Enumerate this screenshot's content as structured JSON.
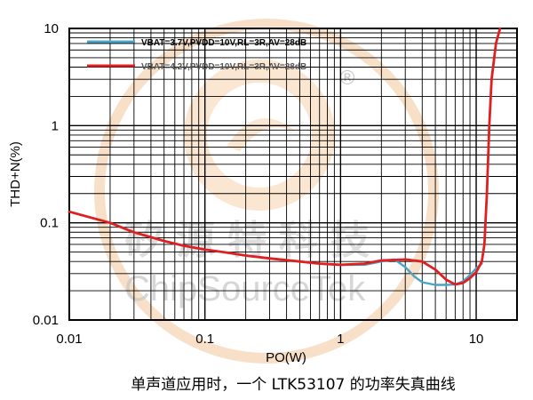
{
  "chart_data": {
    "type": "line",
    "title": "",
    "caption": "单声道应用时，一个 LTK53107 的功率失真曲线",
    "xlabel": "PO(W)",
    "ylabel": "THD+N(%)",
    "xscale": "log",
    "yscale": "log",
    "xlim": [
      0.01,
      20
    ],
    "ylim": [
      0.01,
      10
    ],
    "x_ticks": [
      "0.01",
      "0.1",
      "1",
      "10"
    ],
    "y_ticks": [
      "0.01",
      "0.1",
      "1",
      "10"
    ],
    "grid": true,
    "legend_position": "top-left",
    "series": [
      {
        "name": "VBAT=3.7V,PVDD=10V,RL=3R,AV=28dB",
        "color": "#4aa3c8",
        "points": [
          [
            0.01,
            0.13
          ],
          [
            0.02,
            0.1
          ],
          [
            0.03,
            0.08
          ],
          [
            0.05,
            0.065
          ],
          [
            0.07,
            0.058
          ],
          [
            0.1,
            0.053
          ],
          [
            0.15,
            0.049
          ],
          [
            0.2,
            0.046
          ],
          [
            0.3,
            0.043
          ],
          [
            0.5,
            0.04
          ],
          [
            0.7,
            0.038
          ],
          [
            1.0,
            0.037
          ],
          [
            1.5,
            0.037
          ],
          [
            2.0,
            0.04
          ],
          [
            2.5,
            0.042
          ],
          [
            3.0,
            0.035
          ],
          [
            3.5,
            0.028
          ],
          [
            4.0,
            0.0245
          ],
          [
            5.0,
            0.023
          ],
          [
            6.0,
            0.023
          ],
          [
            7.0,
            0.0232
          ],
          [
            8.0,
            0.025
          ],
          [
            9.0,
            0.029
          ],
          [
            10.0,
            0.034
          ],
          [
            11.0,
            0.038
          ]
        ]
      },
      {
        "name": "VBAT=4.2V,PVDD=10V,RL=3R,AV=28dB",
        "color": "#e02020",
        "points": [
          [
            0.01,
            0.13
          ],
          [
            0.02,
            0.1
          ],
          [
            0.03,
            0.08
          ],
          [
            0.05,
            0.065
          ],
          [
            0.07,
            0.058
          ],
          [
            0.1,
            0.053
          ],
          [
            0.15,
            0.049
          ],
          [
            0.2,
            0.046
          ],
          [
            0.3,
            0.043
          ],
          [
            0.5,
            0.04
          ],
          [
            0.7,
            0.038
          ],
          [
            1.0,
            0.037
          ],
          [
            1.5,
            0.038
          ],
          [
            2.0,
            0.041
          ],
          [
            3.0,
            0.042
          ],
          [
            4.0,
            0.04
          ],
          [
            5.0,
            0.033
          ],
          [
            6.0,
            0.026
          ],
          [
            7.0,
            0.0232
          ],
          [
            8.0,
            0.024
          ],
          [
            9.0,
            0.027
          ],
          [
            10.0,
            0.031
          ],
          [
            11.0,
            0.04
          ],
          [
            11.5,
            0.06
          ],
          [
            12.0,
            0.2
          ],
          [
            12.5,
            1.0
          ],
          [
            13.0,
            3.0
          ],
          [
            14.0,
            7.0
          ],
          [
            15.0,
            10.0
          ]
        ]
      }
    ]
  },
  "watermark": {
    "text_en": "ChipSourceTek",
    "text_cn": "矽源特科技",
    "registered_mark": "®"
  }
}
